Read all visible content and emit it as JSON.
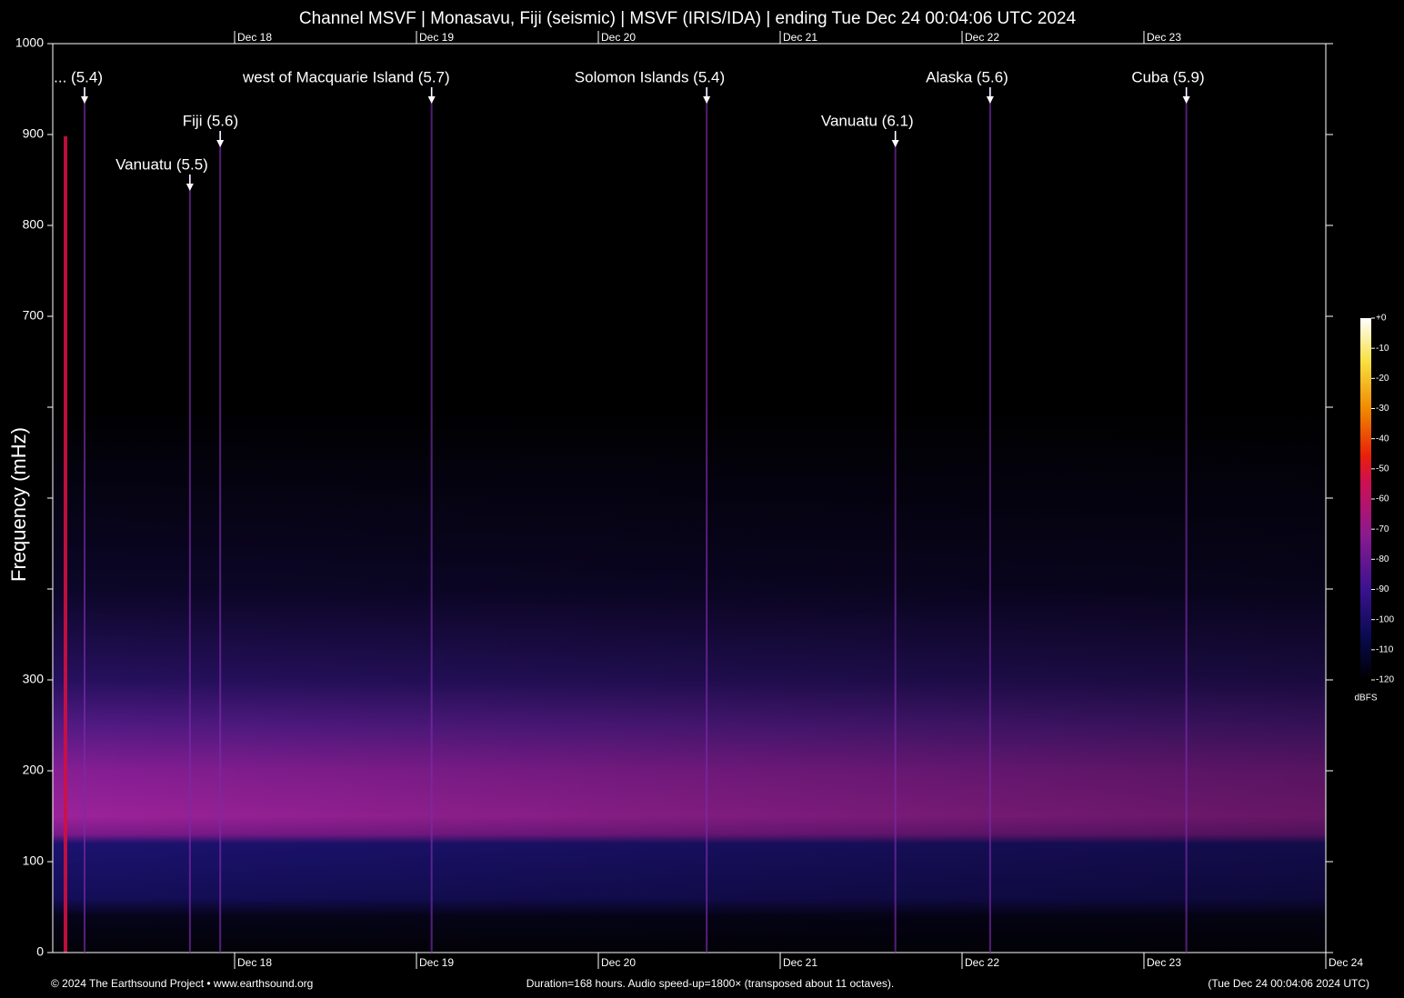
{
  "chart_data": {
    "type": "spectrogram",
    "title": "Channel MSVF | Monasavu, Fiji (seismic) | MSVF (IRIS/IDA) | ending Tue Dec 24 00:04:06 UTC 2024",
    "y_label": "Frequency (mHz)",
    "ylim": [
      0,
      1000
    ],
    "yticks": [
      0,
      100,
      200,
      300,
      700,
      800,
      900,
      1000
    ],
    "yticks_unlabeled": [
      400,
      500,
      600
    ],
    "xlim": [
      0,
      168
    ],
    "xticks": [
      {
        "value": 24,
        "label": "Dec 18"
      },
      {
        "value": 48,
        "label": "Dec 19"
      },
      {
        "value": 72,
        "label": "Dec 20"
      },
      {
        "value": 96,
        "label": "Dec 21"
      },
      {
        "value": 120,
        "label": "Dec 22"
      },
      {
        "value": 144,
        "label": "Dec 23"
      },
      {
        "value": 168,
        "label": "Dec 24"
      }
    ],
    "events": [
      {
        "label": "... (5.4)",
        "x": 4.2
      },
      {
        "label": "Vanuatu (5.5)",
        "x": 18.1
      },
      {
        "label": "Fiji (5.6)",
        "x": 22.1
      },
      {
        "label": "west of Macquarie Island (5.7)",
        "x": 50.0
      },
      {
        "label": "Solomon Islands (5.4)",
        "x": 86.3
      },
      {
        "label": "Vanuatu (6.1)",
        "x": 111.2
      },
      {
        "label": "Alaska (5.6)",
        "x": 123.7
      },
      {
        "label": "Cuba (5.9)",
        "x": 149.6
      }
    ],
    "colorbar": {
      "label": "dBFS",
      "lim": [
        -120,
        0
      ],
      "ticks": [
        {
          "value": 0,
          "label": "+0"
        },
        -10,
        -20,
        -30,
        -40,
        -50,
        -60,
        -70,
        -80,
        -90,
        -100,
        -110,
        -120
      ]
    },
    "footer_left": "© 2024 The Earthsound Project • www.earthsound.org",
    "footer_center": "Duration=168 hours. Audio speed-up=1800× (transposed about 11 octaves).",
    "footer_right": "(Tue Dec 24 00:04:06 2024 UTC)"
  }
}
